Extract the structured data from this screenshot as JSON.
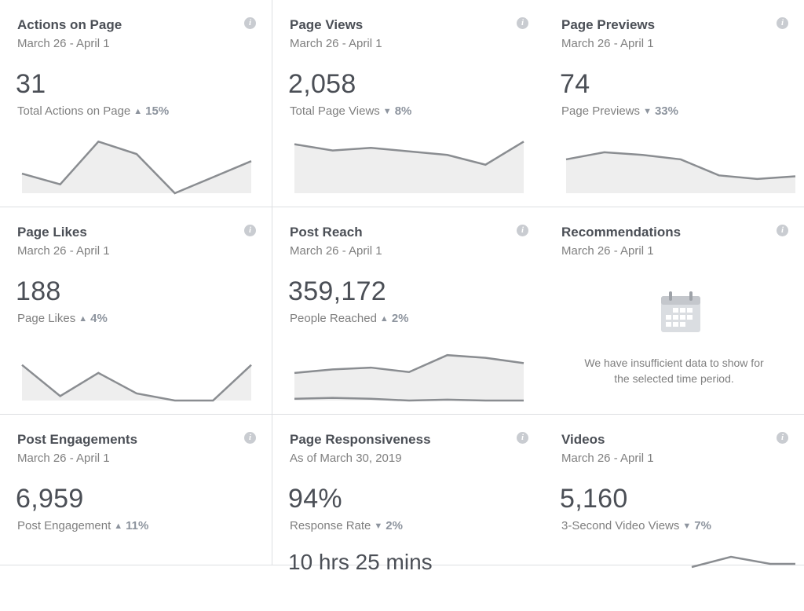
{
  "cards": [
    {
      "title": "Actions on Page",
      "date": "March 26 - April 1",
      "value": "31",
      "metric": "Total Actions on Page",
      "trend": "up",
      "change": "15%",
      "spark": [
        22,
        10,
        58,
        44,
        0,
        18,
        36
      ]
    },
    {
      "title": "Page Views",
      "date": "March 26 - April 1",
      "value": "2,058",
      "metric": "Total Page Views",
      "trend": "down",
      "change": "8%",
      "spark": [
        55,
        48,
        51,
        47,
        43,
        32,
        58
      ]
    },
    {
      "title": "Page Previews",
      "date": "March 26 - April 1",
      "value": "74",
      "metric": "Page Previews",
      "trend": "down",
      "change": "33%",
      "spark": [
        38,
        46,
        43,
        38,
        20,
        16,
        19
      ]
    },
    {
      "title": "Page Likes",
      "date": "March 26 - April 1",
      "value": "188",
      "metric": "Page Likes",
      "trend": "up",
      "change": "4%",
      "spark": [
        40,
        5,
        31,
        8,
        0,
        0,
        40
      ]
    },
    {
      "title": "Post Reach",
      "date": "March 26 - April 1",
      "value": "359,172",
      "metric": "People Reached",
      "trend": "up",
      "change": "2%",
      "spark": [
        31,
        35,
        37,
        32,
        51,
        48,
        42
      ],
      "spark2": [
        2,
        3,
        2,
        0,
        1,
        0,
        0
      ]
    },
    {
      "title": "Recommendations",
      "date": "March 26 - April 1",
      "empty_message_line1": "We have insufficient data to show for",
      "empty_message_line2": "the selected time period."
    },
    {
      "title": "Post Engagements",
      "date": "March 26 - April 1",
      "value": "6,959",
      "metric": "Post Engagement",
      "trend": "up",
      "change": "11%"
    },
    {
      "title": "Page Responsiveness",
      "date": "As of March 30, 2019",
      "value": "94%",
      "metric": "Response Rate",
      "trend": "down",
      "change": "2%",
      "extra": "10 hrs 25 mins"
    },
    {
      "title": "Videos",
      "date": "March 26 - April 1",
      "value": "5,160",
      "metric": "3-Second Video Views",
      "trend": "down",
      "change": "7%"
    }
  ],
  "info_glyph": "i",
  "icons": {
    "info": "info-icon",
    "calendar": "calendar-icon",
    "up": "triangle-up-icon",
    "down": "triangle-down-icon"
  },
  "colors": {
    "line": "#8a8d91",
    "fill": "#eeeeee",
    "text": "#4b4f56",
    "muted": "#7f7f7f",
    "border": "#dddfe2"
  }
}
